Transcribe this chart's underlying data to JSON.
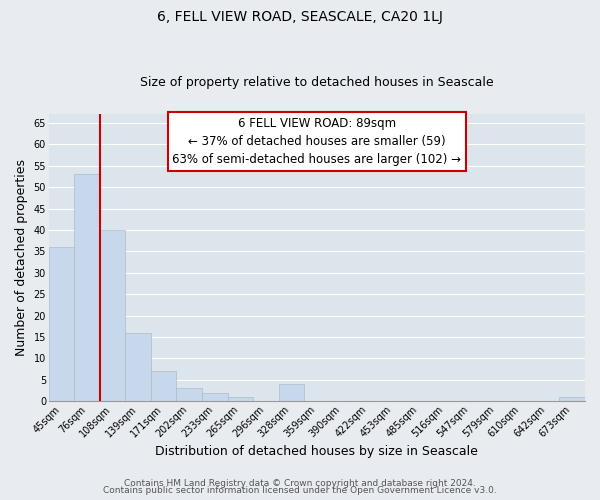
{
  "title": "6, FELL VIEW ROAD, SEASCALE, CA20 1LJ",
  "subtitle": "Size of property relative to detached houses in Seascale",
  "xlabel": "Distribution of detached houses by size in Seascale",
  "ylabel": "Number of detached properties",
  "bar_labels": [
    "45sqm",
    "76sqm",
    "108sqm",
    "139sqm",
    "171sqm",
    "202sqm",
    "233sqm",
    "265sqm",
    "296sqm",
    "328sqm",
    "359sqm",
    "390sqm",
    "422sqm",
    "453sqm",
    "485sqm",
    "516sqm",
    "547sqm",
    "579sqm",
    "610sqm",
    "642sqm",
    "673sqm"
  ],
  "bar_heights": [
    36,
    53,
    40,
    16,
    7,
    3,
    2,
    1,
    0,
    4,
    0,
    0,
    0,
    0,
    0,
    0,
    0,
    0,
    0,
    0,
    1
  ],
  "bar_color": "#c8d8ec",
  "bar_edge_color": "#aabccc",
  "ylim": [
    0,
    67
  ],
  "yticks": [
    0,
    5,
    10,
    15,
    20,
    25,
    30,
    35,
    40,
    45,
    50,
    55,
    60,
    65
  ],
  "vline_x": 1.5,
  "vline_color": "#cc0000",
  "annotation_box_title": "6 FELL VIEW ROAD: 89sqm",
  "annotation_line1": "← 37% of detached houses are smaller (59)",
  "annotation_line2": "63% of semi-detached houses are larger (102) →",
  "annotation_box_edge": "#cc0000",
  "footer_line1": "Contains HM Land Registry data © Crown copyright and database right 2024.",
  "footer_line2": "Contains public sector information licensed under the Open Government Licence v3.0.",
  "bg_color": "#e8ecf0",
  "plot_bg_color": "#dce4ec",
  "grid_color": "#ffffff",
  "title_fontsize": 10,
  "subtitle_fontsize": 9,
  "tick_fontsize": 7,
  "axis_label_fontsize": 9,
  "footer_fontsize": 6.5
}
